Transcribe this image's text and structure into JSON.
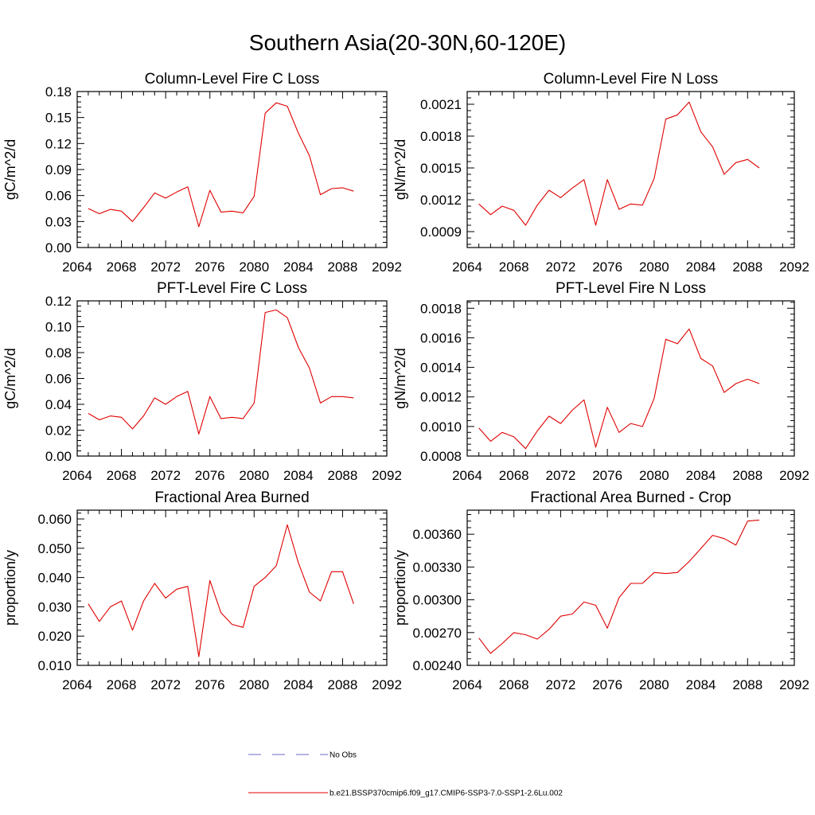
{
  "page": {
    "title": "Southern Asia(20-30N,60-120E)"
  },
  "legend": {
    "entries": [
      {
        "label": "No Obs",
        "color": "#6a6acd",
        "style": "dashed"
      },
      {
        "label": "b.e21.BSSP370cmip6.f09_g17.CMIP6-SSP3-7.0-SSP1-2.6Lu.002",
        "color": "#e00000",
        "style": "solid"
      }
    ]
  },
  "chart_data": [
    {
      "type": "line",
      "title": "Column-Level Fire C Loss",
      "ylabel": "gC/m^2/d",
      "xlim": [
        2064,
        2092
      ],
      "ylim": [
        0,
        0.18
      ],
      "xticks": [
        2064,
        2068,
        2072,
        2076,
        2080,
        2084,
        2088,
        2092
      ],
      "xtick_labels": [
        "2064",
        "2068",
        "2072",
        "2076",
        "2080",
        "2084",
        "2088",
        "2092"
      ],
      "yticks": [
        0,
        0.03,
        0.06,
        0.09,
        0.12,
        0.15,
        0.18
      ],
      "ytick_labels": [
        "0.00",
        "0.03",
        "0.06",
        "0.09",
        "0.12",
        "0.15",
        "0.18"
      ],
      "x": [
        2065,
        2066,
        2067,
        2068,
        2069,
        2070,
        2071,
        2072,
        2073,
        2074,
        2075,
        2076,
        2077,
        2078,
        2079,
        2080,
        2081,
        2082,
        2083,
        2084,
        2085,
        2086,
        2087,
        2088,
        2089
      ],
      "series": [
        {
          "color": "#e00000",
          "values": [
            0.045,
            0.039,
            0.044,
            0.042,
            0.03,
            0.046,
            0.063,
            0.057,
            0.064,
            0.07,
            0.024,
            0.066,
            0.041,
            0.042,
            0.04,
            0.059,
            0.155,
            0.167,
            0.163,
            0.132,
            0.106,
            0.061,
            0.068,
            0.069,
            0.065
          ]
        }
      ]
    },
    {
      "type": "line",
      "title": "Column-Level Fire N Loss",
      "ylabel": "gN/m^2/d",
      "xlim": [
        2064,
        2092
      ],
      "ylim": [
        0.00075,
        0.00222
      ],
      "xticks": [
        2064,
        2068,
        2072,
        2076,
        2080,
        2084,
        2088,
        2092
      ],
      "xtick_labels": [
        "2064",
        "2068",
        "2072",
        "2076",
        "2080",
        "2084",
        "2088",
        "2092"
      ],
      "yticks": [
        0.0009,
        0.0012,
        0.0015,
        0.0018,
        0.0021
      ],
      "ytick_labels": [
        "0.0009",
        "0.0012",
        "0.0015",
        "0.0018",
        "0.0021"
      ],
      "x": [
        2065,
        2066,
        2067,
        2068,
        2069,
        2070,
        2071,
        2072,
        2073,
        2074,
        2075,
        2076,
        2077,
        2078,
        2079,
        2080,
        2081,
        2082,
        2083,
        2084,
        2085,
        2086,
        2087,
        2088,
        2089
      ],
      "series": [
        {
          "color": "#e00000",
          "values": [
            0.00116,
            0.00106,
            0.00114,
            0.0011,
            0.00096,
            0.00115,
            0.00129,
            0.00122,
            0.00131,
            0.00139,
            0.00096,
            0.00139,
            0.00111,
            0.00116,
            0.00115,
            0.0014,
            0.00196,
            0.002,
            0.00212,
            0.00184,
            0.0017,
            0.00144,
            0.00155,
            0.00158,
            0.0015
          ]
        }
      ]
    },
    {
      "type": "line",
      "title": "PFT-Level Fire C Loss",
      "ylabel": "gC/m^2/d",
      "xlim": [
        2064,
        2092
      ],
      "ylim": [
        0,
        0.12
      ],
      "xticks": [
        2064,
        2068,
        2072,
        2076,
        2080,
        2084,
        2088,
        2092
      ],
      "xtick_labels": [
        "2064",
        "2068",
        "2072",
        "2076",
        "2080",
        "2084",
        "2088",
        "2092"
      ],
      "yticks": [
        0,
        0.02,
        0.04,
        0.06,
        0.08,
        0.1,
        0.12
      ],
      "ytick_labels": [
        "0.00",
        "0.02",
        "0.04",
        "0.06",
        "0.08",
        "0.10",
        "0.12"
      ],
      "x": [
        2065,
        2066,
        2067,
        2068,
        2069,
        2070,
        2071,
        2072,
        2073,
        2074,
        2075,
        2076,
        2077,
        2078,
        2079,
        2080,
        2081,
        2082,
        2083,
        2084,
        2085,
        2086,
        2087,
        2088,
        2089
      ],
      "series": [
        {
          "color": "#e00000",
          "values": [
            0.033,
            0.028,
            0.031,
            0.03,
            0.021,
            0.031,
            0.045,
            0.04,
            0.046,
            0.05,
            0.017,
            0.046,
            0.029,
            0.03,
            0.029,
            0.041,
            0.111,
            0.113,
            0.107,
            0.084,
            0.068,
            0.041,
            0.046,
            0.046,
            0.045
          ]
        }
      ]
    },
    {
      "type": "line",
      "title": "PFT-Level Fire N Loss",
      "ylabel": "gN/m^2/d",
      "xlim": [
        2064,
        2092
      ],
      "ylim": [
        0.0008,
        0.00185
      ],
      "xticks": [
        2064,
        2068,
        2072,
        2076,
        2080,
        2084,
        2088,
        2092
      ],
      "xtick_labels": [
        "2064",
        "2068",
        "2072",
        "2076",
        "2080",
        "2084",
        "2088",
        "2092"
      ],
      "yticks": [
        0.0008,
        0.001,
        0.0012,
        0.0014,
        0.0016,
        0.0018
      ],
      "ytick_labels": [
        "0.0008",
        "0.0010",
        "0.0012",
        "0.0014",
        "0.0016",
        "0.0018"
      ],
      "x": [
        2065,
        2066,
        2067,
        2068,
        2069,
        2070,
        2071,
        2072,
        2073,
        2074,
        2075,
        2076,
        2077,
        2078,
        2079,
        2080,
        2081,
        2082,
        2083,
        2084,
        2085,
        2086,
        2087,
        2088,
        2089
      ],
      "series": [
        {
          "color": "#e00000",
          "values": [
            0.00099,
            0.0009,
            0.00096,
            0.00093,
            0.00085,
            0.00097,
            0.00107,
            0.00102,
            0.00111,
            0.00118,
            0.00086,
            0.00113,
            0.00096,
            0.00102,
            0.001,
            0.00119,
            0.00159,
            0.00156,
            0.00166,
            0.00146,
            0.00141,
            0.00123,
            0.00129,
            0.00132,
            0.00129
          ]
        }
      ]
    },
    {
      "type": "line",
      "title": "Fractional Area Burned",
      "ylabel": "proportion/y",
      "xlim": [
        2064,
        2092
      ],
      "ylim": [
        0.01,
        0.063
      ],
      "xticks": [
        2064,
        2068,
        2072,
        2076,
        2080,
        2084,
        2088,
        2092
      ],
      "xtick_labels": [
        "2064",
        "2068",
        "2072",
        "2076",
        "2080",
        "2084",
        "2088",
        "2092"
      ],
      "yticks": [
        0.01,
        0.02,
        0.03,
        0.04,
        0.05,
        0.06
      ],
      "ytick_labels": [
        "0.010",
        "0.020",
        "0.030",
        "0.040",
        "0.050",
        "0.060"
      ],
      "x": [
        2065,
        2066,
        2067,
        2068,
        2069,
        2070,
        2071,
        2072,
        2073,
        2074,
        2075,
        2076,
        2077,
        2078,
        2079,
        2080,
        2081,
        2082,
        2083,
        2084,
        2085,
        2086,
        2087,
        2088,
        2089
      ],
      "series": [
        {
          "color": "#e00000",
          "values": [
            0.031,
            0.025,
            0.03,
            0.032,
            0.022,
            0.032,
            0.038,
            0.033,
            0.036,
            0.037,
            0.013,
            0.039,
            0.028,
            0.024,
            0.023,
            0.037,
            0.04,
            0.044,
            0.058,
            0.045,
            0.035,
            0.032,
            0.042,
            0.042,
            0.031
          ]
        }
      ]
    },
    {
      "type": "line",
      "title": "Fractional Area Burned - Crop",
      "ylabel": "proportion/y",
      "xlim": [
        2064,
        2092
      ],
      "ylim": [
        0.0024,
        0.00382
      ],
      "xticks": [
        2064,
        2068,
        2072,
        2076,
        2080,
        2084,
        2088,
        2092
      ],
      "xtick_labels": [
        "2064",
        "2068",
        "2072",
        "2076",
        "2080",
        "2084",
        "2088",
        "2092"
      ],
      "yticks": [
        0.0024,
        0.0027,
        0.003,
        0.0033,
        0.0036
      ],
      "ytick_labels": [
        "0.00240",
        "0.00270",
        "0.00300",
        "0.00330",
        "0.00360"
      ],
      "x": [
        2065,
        2066,
        2067,
        2068,
        2069,
        2070,
        2071,
        2072,
        2073,
        2074,
        2075,
        2076,
        2077,
        2078,
        2079,
        2080,
        2081,
        2082,
        2083,
        2084,
        2085,
        2086,
        2087,
        2088,
        2089
      ],
      "series": [
        {
          "color": "#e00000",
          "values": [
            0.00265,
            0.00251,
            0.0026,
            0.0027,
            0.00268,
            0.00264,
            0.00273,
            0.00285,
            0.00287,
            0.00298,
            0.00295,
            0.00274,
            0.00302,
            0.00315,
            0.00315,
            0.00325,
            0.00324,
            0.00325,
            0.00335,
            0.00347,
            0.00359,
            0.00356,
            0.0035,
            0.00372,
            0.00373
          ]
        }
      ]
    }
  ]
}
